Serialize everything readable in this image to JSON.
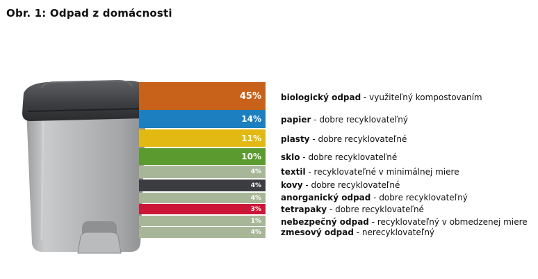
{
  "title": "Obr. 1: Odpad z domácnosti",
  "colors": {
    "orange": "#c8621a",
    "blue": "#1b7fc0",
    "yellow": "#e2b912",
    "green": "#5a9a2f",
    "sage": "#a8b698",
    "dark": "#3c3d40",
    "red": "#cc1638"
  },
  "chart_data": {
    "type": "bar",
    "title": "Obr. 1: Odpad z domácnosti",
    "unit": "%",
    "categories": [
      "biologický odpad",
      "papier",
      "plasty",
      "sklo",
      "textil",
      "kovy",
      "anorganický odpad",
      "tetrapaky",
      "nebezpečný odpad",
      "zmesový odpad"
    ],
    "values": [
      45,
      14,
      11,
      10,
      4,
      4,
      4,
      3,
      1,
      4
    ],
    "descriptions": [
      "využiteľný kompostovaním",
      "dobre recyklovateľný",
      "dobre recyklovateľné",
      "dobre recyklovateľné",
      "recyklovateľné v minimálnej miere",
      "dobre recyklovateľné",
      "dobre recyklovateľný",
      "dobre recyklovateľné",
      "recyklovateľný v obmedzenej miere",
      "nerecyklovateľný"
    ],
    "value_labels": [
      "45%",
      "14%",
      "11%",
      "10%",
      "4%",
      "4%",
      "4%",
      "3%",
      "1%",
      "4%"
    ],
    "bar_colors": [
      "#c8621a",
      "#1b7fc0",
      "#e2b912",
      "#5a9a2f",
      "#a8b698",
      "#3c3d40",
      "#a8b698",
      "#cc1638",
      "#a8b698",
      "#a8b698"
    ]
  }
}
